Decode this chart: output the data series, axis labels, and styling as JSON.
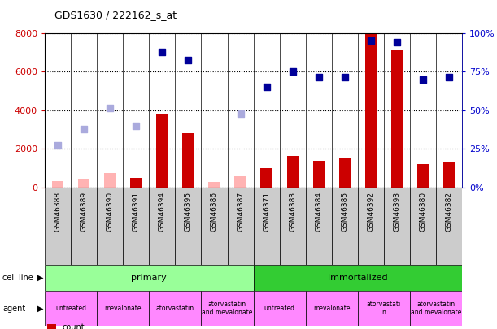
{
  "title": "GDS1630 / 222162_s_at",
  "samples": [
    "GSM46388",
    "GSM46389",
    "GSM46390",
    "GSM46391",
    "GSM46394",
    "GSM46395",
    "GSM46386",
    "GSM46387",
    "GSM46371",
    "GSM46383",
    "GSM46384",
    "GSM46385",
    "GSM46392",
    "GSM46393",
    "GSM46380",
    "GSM46382"
  ],
  "count_values": [
    null,
    null,
    null,
    500,
    3800,
    2800,
    null,
    null,
    1000,
    1650,
    1400,
    1550,
    8000,
    7100,
    1200,
    1350
  ],
  "count_absent": [
    350,
    450,
    750,
    null,
    null,
    null,
    280,
    600,
    null,
    null,
    null,
    null,
    null,
    null,
    null,
    null
  ],
  "percentile_rank": [
    null,
    null,
    null,
    null,
    7000,
    6600,
    null,
    null,
    5200,
    6000,
    5700,
    5700,
    7600,
    7500,
    5600,
    5700
  ],
  "percentile_absent": [
    2200,
    3000,
    4100,
    3200,
    null,
    null,
    null,
    3800,
    null,
    null,
    null,
    null,
    null,
    null,
    null,
    null
  ],
  "ylim_left": [
    0,
    8000
  ],
  "ylim_right": [
    0,
    100
  ],
  "yticks_left": [
    0,
    2000,
    4000,
    6000,
    8000
  ],
  "yticks_right": [
    0,
    25,
    50,
    75,
    100
  ],
  "agent_groups": [
    {
      "label": "untreated",
      "start": 0,
      "end": 2
    },
    {
      "label": "mevalonate",
      "start": 2,
      "end": 4
    },
    {
      "label": "atorvastatin",
      "start": 4,
      "end": 6
    },
    {
      "label": "atorvastatin\nand mevalonate",
      "start": 6,
      "end": 8
    },
    {
      "label": "untreated",
      "start": 8,
      "end": 10
    },
    {
      "label": "mevalonate",
      "start": 10,
      "end": 12
    },
    {
      "label": "atorvastati\nn",
      "start": 12,
      "end": 14
    },
    {
      "label": "atorvastatin\nand mevalonate",
      "start": 14,
      "end": 16
    }
  ],
  "bar_color": "#cc0000",
  "bar_absent_color": "#ffb3b3",
  "dot_color": "#000099",
  "dot_absent_color": "#aaaadd",
  "cell_line_primary_color": "#99ff99",
  "cell_line_immortalized_color": "#33cc33",
  "agent_color": "#ff88ff",
  "tick_color_left": "#cc0000",
  "tick_color_right": "#0000cc",
  "bar_width": 0.45,
  "dot_size": 40,
  "xtick_bg": "#cccccc"
}
